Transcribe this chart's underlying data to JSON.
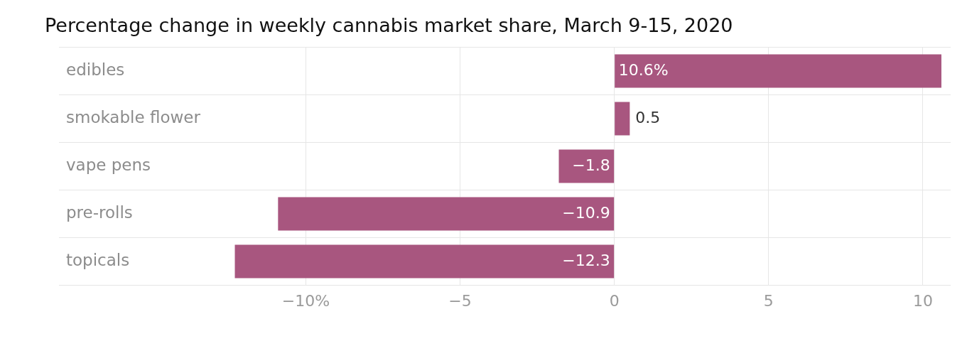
{
  "chart_data": {
    "type": "bar",
    "orientation": "horizontal",
    "title": "Percentage change in weekly cannabis market share, March 9-15, 2020",
    "categories": [
      "edibles",
      "smokable flower",
      "vape pens",
      "pre-rolls",
      "topicals"
    ],
    "values": [
      10.6,
      0.5,
      -1.8,
      -10.9,
      -12.3
    ],
    "value_labels": [
      "10.6%",
      "0.5",
      "−1.8",
      "−10.9",
      "−12.3"
    ],
    "color": "#a8567f",
    "xlim": [
      -18,
      10.9
    ],
    "xticks": [
      {
        "value": -10,
        "label": "−10%"
      },
      {
        "value": -5,
        "label": "−5"
      },
      0,
      5,
      10
    ],
    "grid": true,
    "legend": false
  }
}
